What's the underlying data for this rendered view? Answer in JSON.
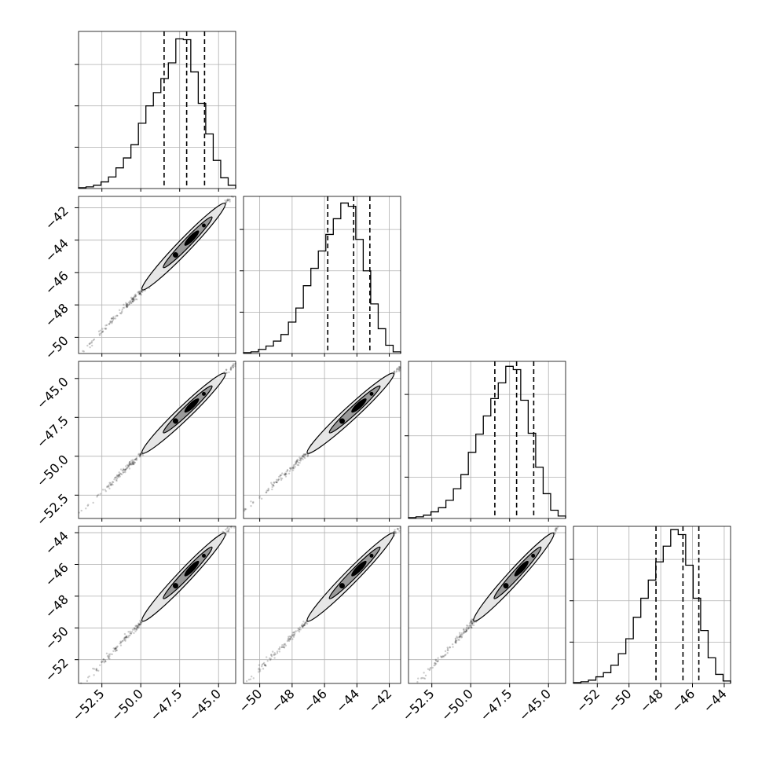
{
  "chart_data": {
    "type": "corner",
    "grid": true,
    "parameters": [
      {
        "xlim": [
          -54.0,
          -43.9
        ],
        "ticks": [
          -52.5,
          -50.0,
          -47.5,
          -45.0
        ],
        "tick_labels": [
          "−52.5",
          "−50.0",
          "−47.5",
          "−45.0"
        ],
        "quantiles": [
          -48.5,
          -47.05,
          -45.9
        ]
      },
      {
        "xlim": [
          -51.0,
          -41.3
        ],
        "ticks": [
          -50,
          -48,
          -46,
          -44,
          -42
        ],
        "tick_labels": [
          "−50",
          "−48",
          "−46",
          "−44",
          "−42"
        ],
        "quantiles": [
          -45.8,
          -44.2,
          -43.2
        ]
      },
      {
        "xlim": [
          -54.0,
          -43.9
        ],
        "ticks": [
          -52.5,
          -50.0,
          -47.5,
          -45.0
        ],
        "tick_labels": [
          "−52.5",
          "−50.0",
          "−47.5",
          "−45.0"
        ],
        "quantiles": [
          -48.45,
          -47.05,
          -45.95
        ]
      },
      {
        "xlim": [
          -53.5,
          -43.6
        ],
        "ticks": [
          -52,
          -50,
          -48,
          -46,
          -44
        ],
        "tick_labels": [
          "−52",
          "−50",
          "−48",
          "−46",
          "−44"
        ],
        "quantiles": [
          -48.3,
          -46.6,
          -45.6
        ]
      }
    ],
    "histograms": [
      [
        1,
        2,
        4,
        8,
        14,
        25,
        37,
        53,
        79,
        100,
        116,
        133,
        152,
        181,
        180,
        141,
        103,
        66,
        34,
        13,
        4
      ],
      [
        1,
        2,
        5,
        9,
        15,
        23,
        38,
        55,
        82,
        103,
        124,
        144,
        163,
        182,
        178,
        138,
        100,
        60,
        30,
        10,
        2
      ],
      [
        1,
        2,
        4,
        8,
        13,
        22,
        36,
        53,
        80,
        102,
        124,
        145,
        164,
        184,
        180,
        143,
        103,
        62,
        30,
        10,
        3
      ],
      [
        1,
        2,
        4,
        8,
        13,
        22,
        36,
        54,
        80,
        103,
        125,
        147,
        166,
        186,
        180,
        143,
        103,
        64,
        31,
        11,
        3
      ]
    ],
    "hist_ylim": [
      0,
      190
    ]
  }
}
